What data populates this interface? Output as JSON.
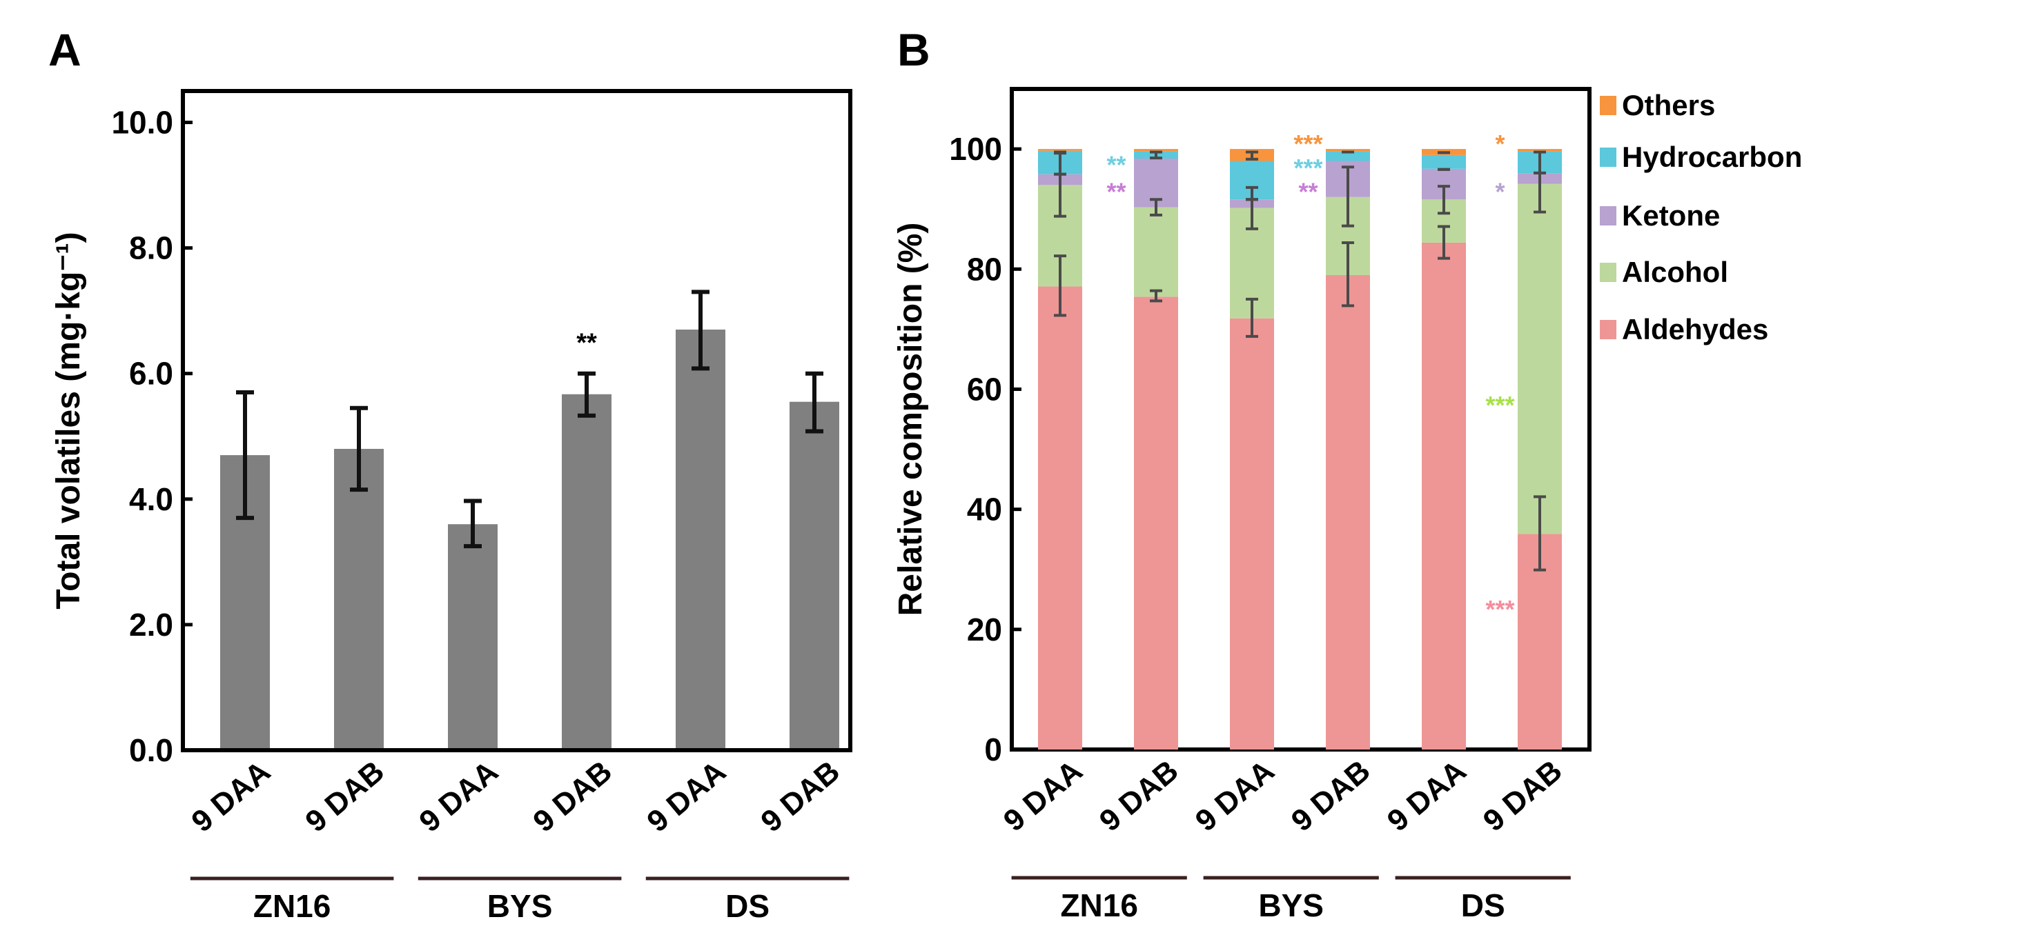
{
  "chart_data": [
    {
      "panel": "A",
      "type": "bar",
      "ylabel": "Total volatiles (mg·kg⁻¹)",
      "ylim": [
        0,
        10.5
      ],
      "yticks": [
        "0.0",
        "2.0",
        "4.0",
        "6.0",
        "8.0",
        "10.0"
      ],
      "categories": [
        "9 DAA",
        "9 DAB",
        "9 DAA",
        "9 DAB",
        "9 DAA",
        "9 DAB"
      ],
      "groups": [
        "ZN16",
        "BYS",
        "DS"
      ],
      "values": [
        4.7,
        4.8,
        3.6,
        5.67,
        6.7,
        5.55
      ],
      "err_low": [
        3.7,
        4.15,
        3.25,
        5.33,
        6.08,
        5.08
      ],
      "err_high": [
        5.7,
        5.45,
        3.97,
        6.0,
        7.3,
        6.0
      ],
      "bar_color": "#808080",
      "annotations": [
        {
          "bar": 3,
          "text": "**"
        }
      ]
    },
    {
      "panel": "B",
      "type": "bar",
      "stacked": true,
      "ylabel": "Relative composition (%)",
      "ylim": [
        0,
        110
      ],
      "yticks": [
        "0",
        "20",
        "40",
        "60",
        "80",
        "100"
      ],
      "categories": [
        "9 DAA",
        "9 DAB",
        "9 DAA",
        "9 DAB",
        "9 DAA",
        "9 DAB"
      ],
      "groups": [
        "ZN16",
        "BYS",
        "DS"
      ],
      "legend_position": "right",
      "series": [
        {
          "name": "Aldehydes",
          "color": "#ee9595",
          "values": [
            77.1,
            75.4,
            71.8,
            79.0,
            84.4,
            35.9
          ]
        },
        {
          "name": "Alcohol",
          "color": "#bdd89c",
          "values": [
            16.9,
            14.9,
            18.4,
            13.0,
            7.2,
            58.3
          ]
        },
        {
          "name": "Ketone",
          "color": "#b8a2cf",
          "values": [
            1.8,
            8.1,
            1.4,
            6.0,
            5.1,
            1.7
          ]
        },
        {
          "name": "Hydrocarbon",
          "color": "#5bc8dc",
          "values": [
            3.9,
            1.2,
            6.4,
            1.6,
            2.3,
            3.7
          ]
        },
        {
          "name": "Others",
          "color": "#f7943d",
          "values": [
            0.3,
            0.4,
            2.0,
            0.4,
            1.0,
            0.4
          ]
        }
      ],
      "errors": [
        [
          [
            72.3,
            82.2
          ],
          [
            88.8,
            99.3
          ],
          [
            95.8,
            95.8
          ],
          [
            99.5,
            99.5
          ]
        ],
        [
          [
            74.7,
            76.4
          ],
          [
            89.0,
            91.6
          ],
          [
            98.5,
            99.5
          ]
        ],
        [
          [
            68.8,
            75.0
          ],
          [
            86.7,
            93.6
          ],
          [
            91.6,
            91.6
          ],
          [
            98.3,
            99.5
          ]
        ],
        [
          [
            73.9,
            84.4
          ],
          [
            87.2,
            97.0
          ],
          [
            99.5,
            99.5
          ]
        ],
        [
          [
            81.8,
            87.1
          ],
          [
            89.3,
            93.8
          ],
          [
            96.6,
            96.6
          ],
          [
            99.4,
            99.4
          ]
        ],
        [
          [
            29.9,
            42.1
          ],
          [
            89.5,
            99.5
          ],
          [
            96.0,
            96.0
          ]
        ]
      ],
      "annotations": [
        {
          "after_bar": 0,
          "y": 98,
          "text": "**",
          "color": "#6fcfe0"
        },
        {
          "after_bar": 0,
          "y": 93.5,
          "text": "**",
          "color": "#c77ed6"
        },
        {
          "after_bar": 2,
          "y": 101.5,
          "text": "***",
          "color": "#f7943d"
        },
        {
          "after_bar": 2,
          "y": 97.5,
          "text": "***",
          "color": "#6fcfe0"
        },
        {
          "after_bar": 2,
          "y": 93.5,
          "text": "**",
          "color": "#c77ed6"
        },
        {
          "after_bar": 4,
          "y": 101.5,
          "text": "*",
          "color": "#f7943d"
        },
        {
          "after_bar": 4,
          "y": 93.5,
          "text": "*",
          "color": "#b8a2cf"
        },
        {
          "after_bar": 4,
          "y": 58,
          "text": "***",
          "color": "#a8e04a"
        },
        {
          "after_bar": 4,
          "y": 24,
          "text": "***",
          "color": "#f58c9c"
        }
      ]
    }
  ],
  "panel_labels": [
    "A",
    "B"
  ]
}
